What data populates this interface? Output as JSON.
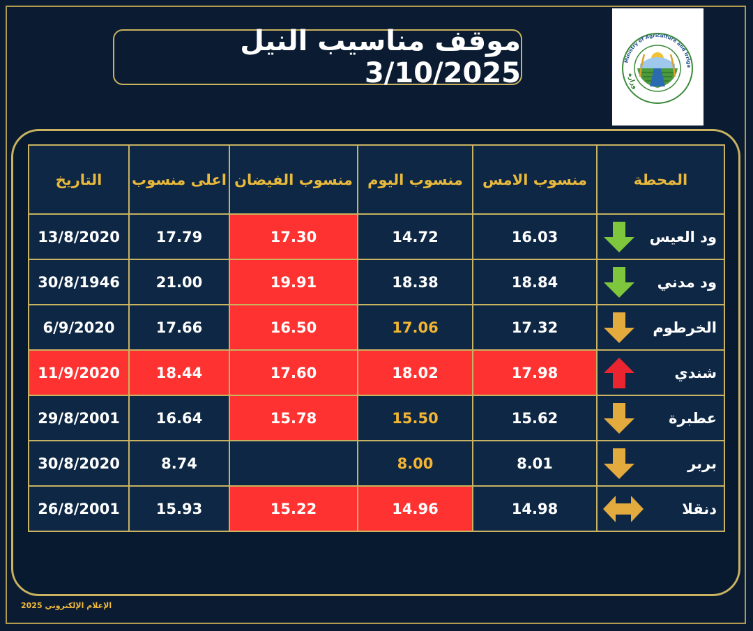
{
  "title": "موقف مناسيب النيل  3/10/2025",
  "logo": {
    "text_top": "Ministry of Agriculture and Irrigation",
    "text_bottom": "وزارة الزراعة والري",
    "colors": {
      "green": "#4a9a3c",
      "blue": "#2d6bb0",
      "gold": "#e3b43a"
    }
  },
  "table": {
    "headers": [
      "التاريخ",
      "اعلى منسوب",
      "منسوب الفيضان",
      "منسوب اليوم",
      "منسوب الامس",
      "المحطة"
    ],
    "rows": [
      {
        "date": "13/8/2020",
        "max": "17.79",
        "flood": "17.30",
        "today": "14.72",
        "yesterday": "16.03",
        "station": "ود العيس",
        "trend": "down",
        "trend_icon": "down-arrow-icon",
        "arrow_color": "#7ec63b"
      },
      {
        "date": "30/8/1946",
        "max": "21.00",
        "flood": "19.91",
        "today": "18.38",
        "yesterday": "18.84",
        "station": "ود مدني",
        "trend": "down",
        "trend_icon": "down-arrow-icon",
        "arrow_color": "#7ec63b"
      },
      {
        "date": "6/9/2020",
        "max": "17.66",
        "flood": "16.50",
        "today": "17.06",
        "yesterday": "17.32",
        "station": "الخرطوم",
        "trend": "down",
        "trend_icon": "down-arrow-icon",
        "arrow_color": "#e3aa3d"
      },
      {
        "date": "11/9/2020",
        "max": "18.44",
        "flood": "17.60",
        "today": "18.02",
        "yesterday": "17.98",
        "station": "شندي",
        "trend": "up",
        "trend_icon": "up-arrow-icon",
        "arrow_color": "#ea2530"
      },
      {
        "date": "29/8/2001",
        "max": "16.64",
        "flood": "15.78",
        "today": "15.50",
        "yesterday": "15.62",
        "station": "عطبرة",
        "trend": "down",
        "trend_icon": "down-arrow-icon",
        "arrow_color": "#e3aa3d"
      },
      {
        "date": "30/8/2020",
        "max": "8.74",
        "flood": "",
        "today": "8.00",
        "yesterday": "8.01",
        "station": "بربر",
        "trend": "down",
        "trend_icon": "down-arrow-icon",
        "arrow_color": "#e3aa3d"
      },
      {
        "date": "26/8/2001",
        "max": "15.93",
        "flood": "15.22",
        "today": "14.96",
        "yesterday": "14.98",
        "station": "دنقلا",
        "trend": "stable",
        "trend_icon": "double-arrow-icon",
        "arrow_color": "#e3aa3d"
      }
    ]
  },
  "colors": {
    "background": "#0b1c32",
    "cell": "#0d2745",
    "border_gold": "#c9b260",
    "header_text": "#e9b93b",
    "alert_red": "#fe3331",
    "amber_text": "#f3b532"
  },
  "footer": "الإعلام الإلكتروني 2025"
}
